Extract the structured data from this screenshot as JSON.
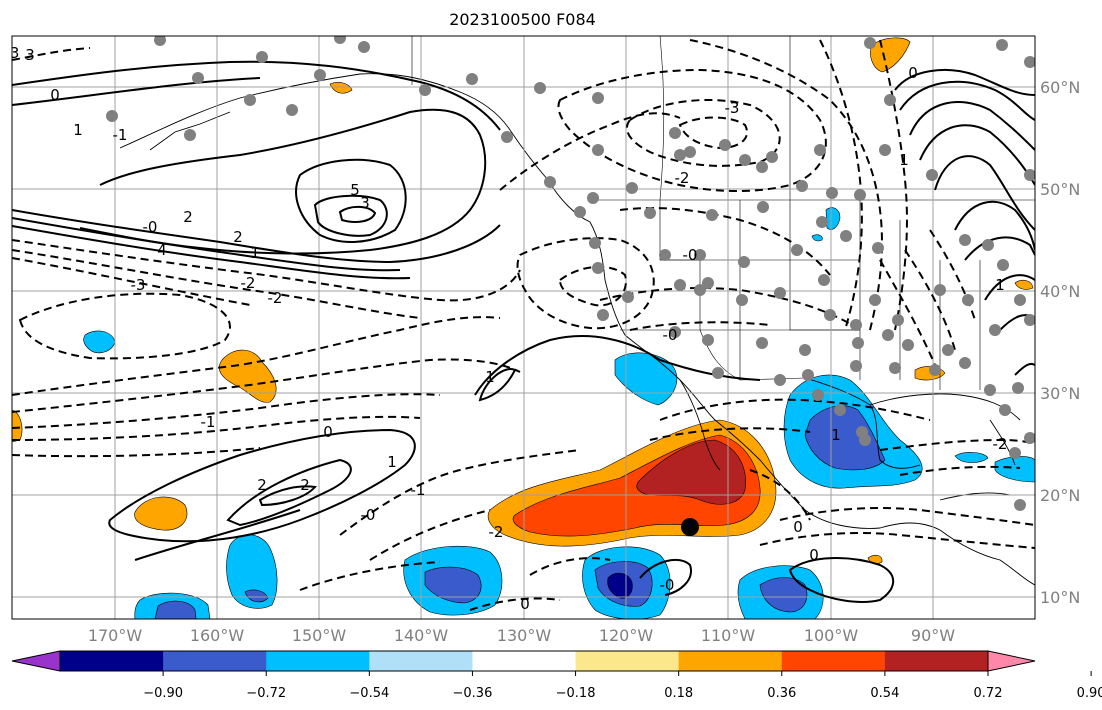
{
  "title": "2023100500 F084",
  "lon_ticks": [
    "170°W",
    "160°W",
    "150°W",
    "140°W",
    "130°W",
    "120°W",
    "110°W",
    "100°W",
    "90°W"
  ],
  "lat_ticks": [
    "10°N",
    "20°N",
    "30°N",
    "40°N",
    "50°N",
    "60°N"
  ],
  "colorbar": {
    "labels": [
      "−0.90",
      "−0.72",
      "−0.54",
      "−0.36",
      "−0.18",
      "0.18",
      "0.36",
      "0.54",
      "0.72",
      "0.90"
    ],
    "colors": [
      "#9933cc",
      "#00008b",
      "#3a5bcc",
      "#00bfff",
      "#b0e0f8",
      "#ffffff",
      "#fbe88a",
      "#ffa500",
      "#ff4500",
      "#b22222",
      "#ff88aa"
    ]
  },
  "contour_labels": [
    {
      "text": "0"
    },
    {
      "text": "1"
    },
    {
      "text": "-1"
    },
    {
      "text": "3"
    },
    {
      "text": "2"
    },
    {
      "text": "-0"
    },
    {
      "text": "4"
    },
    {
      "text": "5"
    },
    {
      "text": "3"
    },
    {
      "text": "2"
    },
    {
      "text": "1"
    },
    {
      "text": "-3"
    },
    {
      "text": "-2"
    },
    {
      "text": "-2"
    },
    {
      "text": "-1"
    },
    {
      "text": "0"
    },
    {
      "text": "1"
    },
    {
      "text": "1"
    },
    {
      "text": "2"
    },
    {
      "text": "2"
    },
    {
      "text": "-0"
    },
    {
      "text": "-1"
    },
    {
      "text": "-2"
    },
    {
      "text": "0"
    },
    {
      "text": "-3"
    },
    {
      "text": "-2"
    },
    {
      "text": "-0"
    },
    {
      "text": "-0"
    },
    {
      "text": "1"
    },
    {
      "text": "0"
    },
    {
      "text": "0"
    },
    {
      "text": "-0"
    },
    {
      "text": "1"
    },
    {
      "text": "-2"
    },
    {
      "text": "0"
    },
    {
      "text": "1"
    },
    {
      "text": "-3"
    }
  ]
}
